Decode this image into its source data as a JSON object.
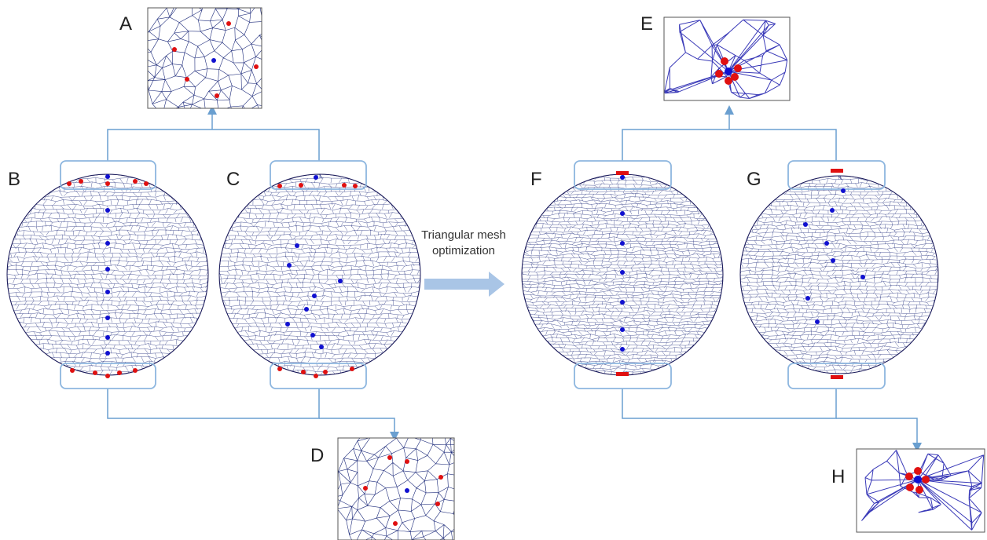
{
  "panels": [
    {
      "label": "A"
    },
    {
      "label": "B"
    },
    {
      "label": "C"
    },
    {
      "label": "D"
    },
    {
      "label": "E"
    },
    {
      "label": "F"
    },
    {
      "label": "G"
    },
    {
      "label": "H"
    }
  ],
  "arrow_label": [
    "Triangular mesh",
    "optimization"
  ]
}
